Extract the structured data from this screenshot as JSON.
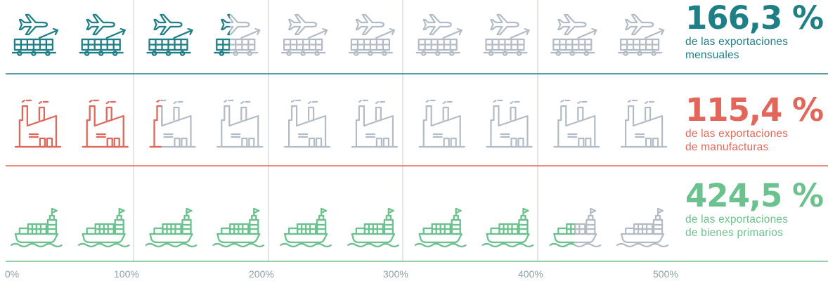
{
  "chart_data": {
    "type": "pictograph",
    "x_axis": {
      "ticks": [
        "0%",
        "100%",
        "200%",
        "300%",
        "400%",
        "500%"
      ],
      "range": [
        0,
        500
      ]
    },
    "series": [
      {
        "icon": "airplane-cargo-icon",
        "value": 166.3,
        "value_label": "166,3 %",
        "line1": "de las exportaciones",
        "line2": "mensuales",
        "color": "#1f7f86"
      },
      {
        "icon": "factory-icon",
        "value": 115.4,
        "value_label": "115,4 %",
        "line1": "de las exportaciones",
        "line2": "de manufacturas",
        "color": "#e2675a"
      },
      {
        "icon": "cargo-ship-icon",
        "value": 424.5,
        "value_label": "424,5 %",
        "line1": "de las exportaciones",
        "line2": "de bienes primarios",
        "color": "#6cc28e"
      }
    ],
    "inactive_color": "#b3bcc4",
    "axis_color": "#6cc28e",
    "gridline_color": "#c6ced4"
  }
}
